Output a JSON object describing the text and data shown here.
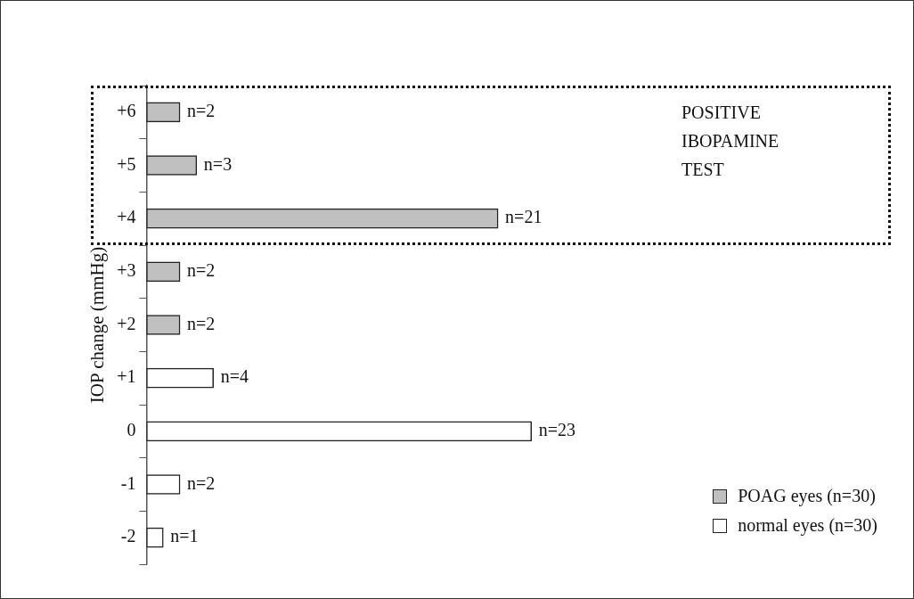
{
  "chart_data": {
    "type": "bar",
    "orientation": "horizontal",
    "stacked": true,
    "ylabel": "IOP change (mmHg)",
    "categories": [
      "+6",
      "+5",
      "+4",
      "+3",
      "+2",
      "+1",
      "0",
      "-1",
      "-2"
    ],
    "series": [
      {
        "name": "POAG eyes (n=30)",
        "color": "#c0c0c0",
        "values": [
          2,
          3,
          21,
          2,
          2,
          null,
          null,
          null,
          null
        ],
        "value_labels": [
          "n=2",
          "n=3",
          "n=21",
          "n=2",
          "n=2",
          null,
          null,
          null,
          null
        ]
      },
      {
        "name": "normal eyes (n=30)",
        "color": "#ffffff",
        "values": [
          null,
          null,
          null,
          null,
          null,
          4,
          23,
          2,
          1
        ],
        "value_labels": [
          null,
          null,
          null,
          null,
          null,
          "n=4",
          "n=23",
          "n=2",
          "n=1"
        ]
      }
    ],
    "annotations": [
      "POSITIVE IBOPAMINE TEST"
    ],
    "relative": false,
    "grid": false,
    "legend": "bottom right"
  }
}
